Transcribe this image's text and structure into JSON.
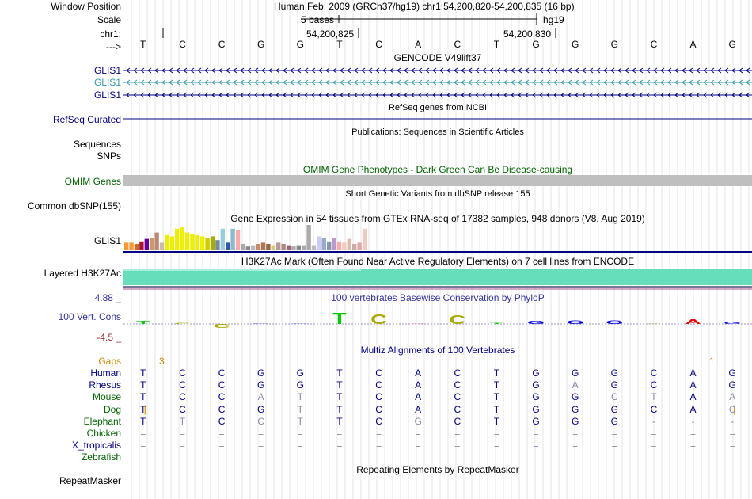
{
  "ruler": {
    "window_label": "Window Position",
    "scale_label": "Scale",
    "chrom_label": "chr1:",
    "arrow_label": "--->",
    "assembly_info": "Human Feb. 2009 (GRCh37/hg19)   chr1:54,200,820-54,200,835 (16 bp)",
    "scale_text": "5 bases",
    "scale_db": "hg19",
    "pos_a": "54,200,825",
    "pos_b": "54,200,830",
    "bases": [
      "T",
      "C",
      "C",
      "G",
      "G",
      "T",
      "C",
      "A",
      "C",
      "T",
      "G",
      "G",
      "G",
      "C",
      "A",
      "G"
    ]
  },
  "gencode": {
    "title": "GENCODE V49lift37",
    "tracks": [
      {
        "label": "GLIS1",
        "color": "#000080"
      },
      {
        "label": "GLIS1",
        "color": "#3399aa"
      },
      {
        "label": "GLIS1",
        "color": "#000080"
      }
    ]
  },
  "refseq": {
    "title": "RefSeq genes from NCBI",
    "label": "RefSeq Curated"
  },
  "publications": {
    "title": "Publications: Sequences in Scientific Articles",
    "label1": "Sequences",
    "label2": "SNPs"
  },
  "omim": {
    "title": "OMIM Gene Phenotypes - Dark Green Can Be Disease-causing",
    "label": "OMIM Genes"
  },
  "dbsnp": {
    "title": "Short Genetic Variants from dbSNP release 155",
    "label": "Common dbSNP(155)"
  },
  "gtex": {
    "title": "Gene Expression in 54 tissues from GTEx RNA-seq of 17382 samples, 948 donors (V8, Aug 2019)",
    "label": "GLIS1",
    "bars": [
      {
        "v": 0.3,
        "c": "#ff9933"
      },
      {
        "v": 0.3,
        "c": "#ff9933"
      },
      {
        "v": 0.25,
        "c": "#cc6622"
      },
      {
        "v": 0.35,
        "c": "#aa1133"
      },
      {
        "v": 0.45,
        "c": "#660099"
      },
      {
        "v": 0.5,
        "c": "#cc9966"
      },
      {
        "v": 0.7,
        "c": "#bb8877"
      },
      {
        "v": 0.3,
        "c": "#ccbbaa"
      },
      {
        "v": 0.6,
        "c": "#eeee00"
      },
      {
        "v": 0.55,
        "c": "#eeee00"
      },
      {
        "v": 0.85,
        "c": "#eeee00"
      },
      {
        "v": 0.9,
        "c": "#eeee00"
      },
      {
        "v": 0.7,
        "c": "#eeee00"
      },
      {
        "v": 0.65,
        "c": "#eeee00"
      },
      {
        "v": 0.6,
        "c": "#eeee00"
      },
      {
        "v": 0.55,
        "c": "#eeee00"
      },
      {
        "v": 0.5,
        "c": "#cccc00"
      },
      {
        "v": 0.55,
        "c": "#aaaa00"
      },
      {
        "v": 0.4,
        "c": "#778899"
      },
      {
        "v": 0.85,
        "c": "#99ccdd"
      },
      {
        "v": 0.3,
        "c": "#3355aa"
      },
      {
        "v": 0.85,
        "c": "#88bbcc"
      },
      {
        "v": 0.8,
        "c": "#ffaaaa"
      },
      {
        "v": 0.25,
        "c": "#aaaaaa"
      },
      {
        "v": 0.15,
        "c": "#888888"
      },
      {
        "v": 0.2,
        "c": "#bbbbbb"
      },
      {
        "v": 0.25,
        "c": "#cc8866"
      },
      {
        "v": 0.3,
        "c": "#aa7755"
      },
      {
        "v": 0.25,
        "c": "#996644"
      },
      {
        "v": 0.2,
        "c": "#cccc77"
      },
      {
        "v": 0.3,
        "c": "#bb9999"
      },
      {
        "v": 0.25,
        "c": "#aa8888"
      },
      {
        "v": 0.2,
        "c": "#996677"
      },
      {
        "v": 0.15,
        "c": "#aaaaaa"
      },
      {
        "v": 0.2,
        "c": "#888888"
      },
      {
        "v": 0.2,
        "c": "#aaaaaa"
      },
      {
        "v": 1.0,
        "c": "#aaaaaa"
      },
      {
        "v": 0.2,
        "c": "#bbbbbb"
      },
      {
        "v": 0.55,
        "c": "#ccccff"
      },
      {
        "v": 0.5,
        "c": "#99aacc"
      },
      {
        "v": 0.35,
        "c": "#8899aa"
      },
      {
        "v": 0.5,
        "c": "#bb99cc"
      },
      {
        "v": 0.35,
        "c": "#ffaaaa"
      },
      {
        "v": 0.3,
        "c": "#eeccbb"
      },
      {
        "v": 0.45,
        "c": "#ddbbaa"
      },
      {
        "v": 0.25,
        "c": "#ccaaaa"
      },
      {
        "v": 0.3,
        "c": "#ddaaaa"
      },
      {
        "v": 0.85,
        "c": "#eeccc0"
      }
    ]
  },
  "h3k27ac": {
    "title": "H3K27Ac Mark (Often Found Near Active Regulatory Elements) on 7 cell lines from ENCODE",
    "label": "Layered H3K27Ac"
  },
  "phylop": {
    "title": "100 vertebrates Basewise Conservation by PhyloP",
    "label": "100 Vert. Cons",
    "max": "4.88 _",
    "min": "-4.5 _",
    "scores": [
      1.2,
      0.3,
      -1.6,
      0.2,
      0.0,
      4.6,
      4.0,
      0.0,
      3.5,
      0.4,
      1.3,
      1.5,
      1.5,
      0.0,
      1.9,
      0.8
    ]
  },
  "multiz": {
    "title": "Multiz Alignments of 100 Vertebrates",
    "gaps_label": "Gaps",
    "gap_mark_1": "3",
    "gap_mark_2": "1",
    "species": [
      {
        "name": "Human",
        "color": "#000080"
      },
      {
        "name": "Rhesus",
        "color": "#000080"
      },
      {
        "name": "Mouse",
        "color": "#006400"
      },
      {
        "name": "Dog",
        "color": "#006400"
      },
      {
        "name": "Elephant",
        "color": "#006400"
      },
      {
        "name": "Chicken",
        "color": "#006400"
      },
      {
        "name": "X_tropicalis",
        "color": "#000080"
      },
      {
        "name": "Zebrafish",
        "color": "#006400"
      }
    ],
    "rows": [
      [
        "T",
        "C",
        "C",
        "G",
        "G",
        "T",
        "C",
        "A",
        "C",
        "T",
        "G",
        "G",
        "G",
        "C",
        "A",
        "G"
      ],
      [
        "T",
        "C",
        "C",
        "G",
        "G",
        "T",
        "C",
        "A",
        "C",
        "T",
        "G",
        "A",
        "G",
        "C",
        "A",
        "G"
      ],
      [
        "T",
        "C",
        "C",
        "A",
        "T",
        "T",
        "C",
        "A",
        "C",
        "T",
        "G",
        "G",
        "C",
        "T",
        "A",
        "A"
      ],
      [
        "T",
        "C",
        "C",
        "G",
        "T",
        "T",
        "C",
        "A",
        "C",
        "T",
        "G",
        "G",
        "G",
        "C",
        "A",
        "C"
      ],
      [
        "T",
        "T",
        "C",
        "C",
        "T",
        "T",
        "C",
        "G",
        "C",
        "T",
        "G",
        "G",
        "G",
        "-",
        "-",
        "-"
      ],
      [
        "=",
        "=",
        "=",
        "=",
        "=",
        "=",
        "=",
        "=",
        "=",
        "=",
        "=",
        "=",
        "=",
        "=",
        "=",
        "="
      ],
      [
        "=",
        "=",
        "=",
        "=",
        "=",
        "=",
        "=",
        "=",
        "=",
        "=",
        "=",
        "=",
        "=",
        "=",
        "=",
        "="
      ],
      [
        "",
        "",
        "",
        "",
        "",
        "",
        "",
        "",
        "",
        "",
        "",
        "",
        "",
        "",
        "",
        ""
      ]
    ]
  },
  "repeatmasker": {
    "title": "Repeating Elements by RepeatMasker",
    "label": "RepeatMasker"
  }
}
